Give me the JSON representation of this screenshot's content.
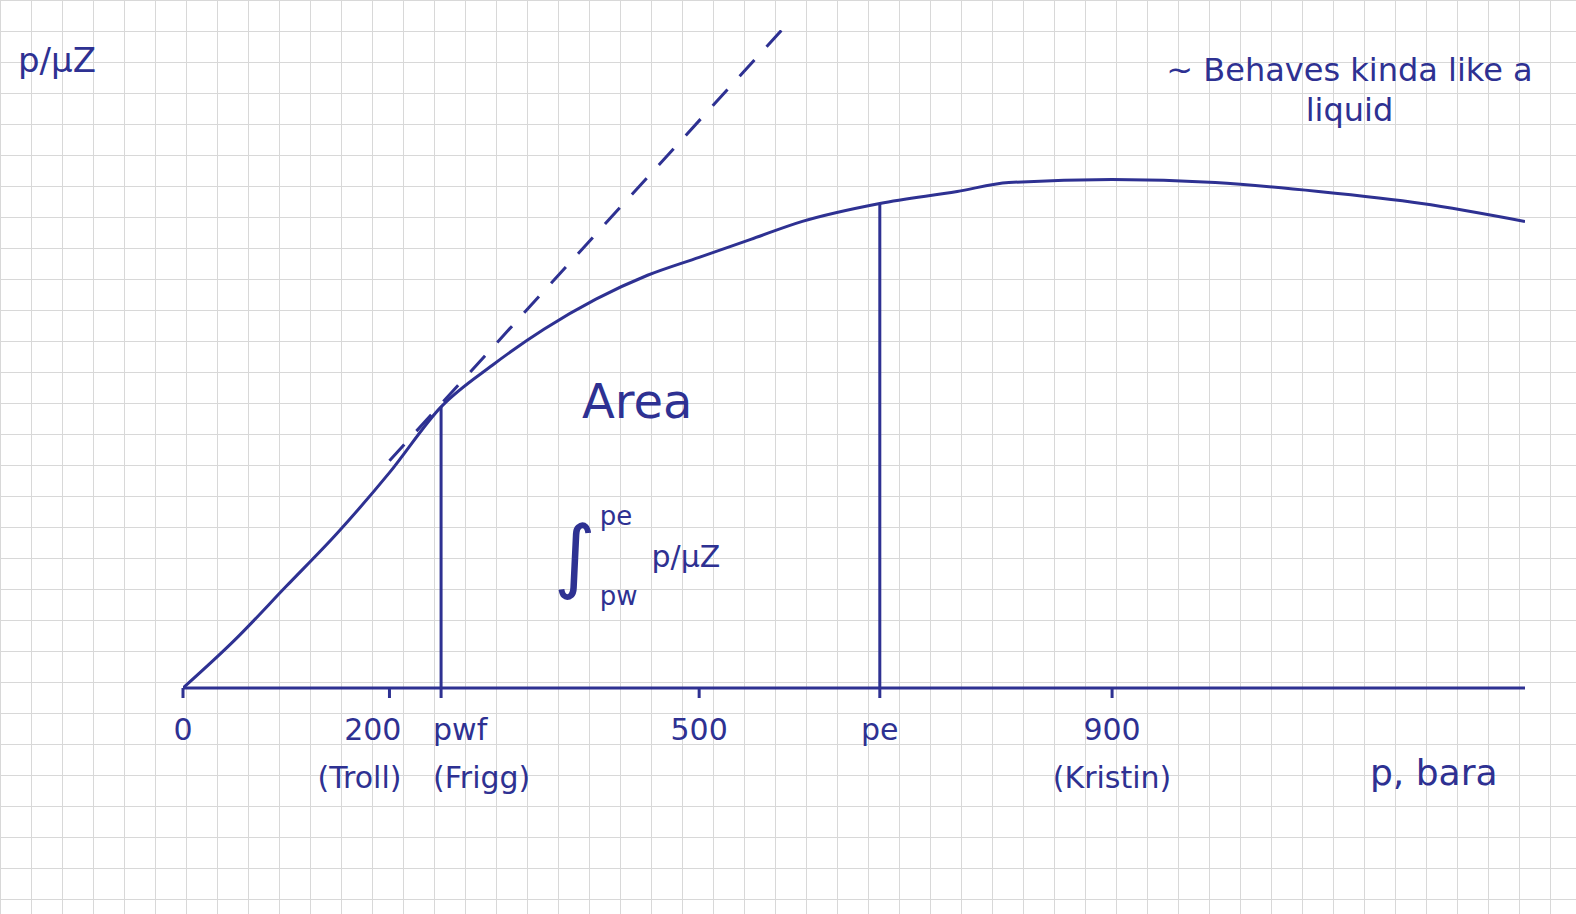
{
  "chart_data": {
    "type": "line",
    "x_label": "p, bara",
    "y_label": "p/μZ",
    "xlim": [
      0,
      1300
    ],
    "ylim": [
      0,
      110
    ],
    "xticks": [
      0,
      200,
      {
        "value": 250,
        "label": "pwf"
      },
      500,
      {
        "value": 675,
        "label": "pe"
      },
      900
    ],
    "yticks": [],
    "tick_labels": "x",
    "series": [
      {
        "x": [
          0,
          50,
          100,
          150,
          200,
          250,
          300,
          350,
          400,
          450,
          500,
          550,
          600,
          675,
          750,
          800,
          900,
          1000,
          1100,
          1200,
          1300
        ],
        "values": [
          0,
          8,
          17,
          26,
          36,
          47,
          54,
          60,
          65,
          69,
          72,
          75,
          78,
          81,
          83,
          84.5,
          85,
          84.5,
          83,
          81,
          78
        ],
        "color": "#2e3192",
        "line_style": "solid"
      },
      {
        "x": [
          200,
          580
        ],
        "values": [
          38,
          110
        ],
        "color": "#2e3192",
        "line_style": "dashed"
      }
    ],
    "vertical_lines": [
      {
        "x": 250,
        "y": 47
      },
      {
        "x": 675,
        "y": 81
      }
    ],
    "tick_notes": [
      {
        "x": 200,
        "text": "(Troll)"
      },
      {
        "x": 250,
        "text": "(Frigg)"
      },
      {
        "x": 900,
        "text": "(Kristin)"
      }
    ],
    "annotations": [
      {
        "text": "Area",
        "x": 440,
        "y": 48
      },
      {
        "text": "~ Behaves kinda like a liquid",
        "x": 1130,
        "y": 100
      }
    ],
    "integral": {
      "symbol": "∫",
      "lower": "pw",
      "upper": "pe",
      "integrand": "p/μZ",
      "x": 440,
      "y": 22
    }
  }
}
